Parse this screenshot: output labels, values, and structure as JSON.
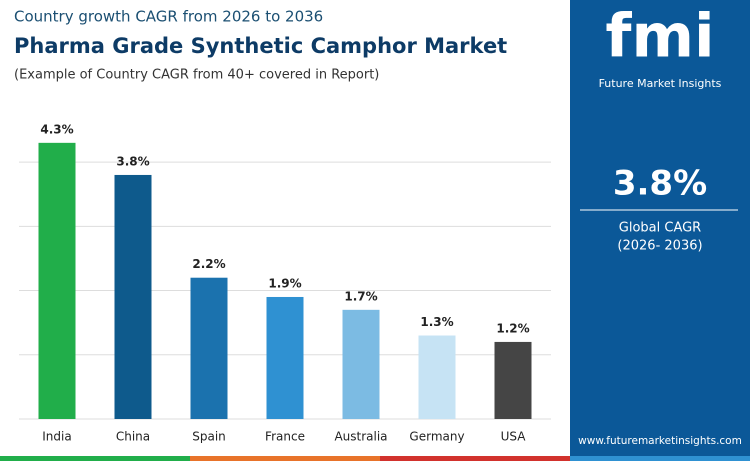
{
  "header": {
    "subtitle": "Country growth CAGR from 2026 to 2036",
    "note": "(Example of Country CAGR from 40+ covered in Report)"
  },
  "chart_data": {
    "type": "bar",
    "title": "Pharma Grade Synthetic Camphor Market",
    "categories": [
      "India",
      "China",
      "Spain",
      "France",
      "Australia",
      "Germany",
      "USA"
    ],
    "values": [
      4.3,
      3.8,
      2.2,
      1.9,
      1.7,
      1.3,
      1.2
    ],
    "value_labels": [
      "4.3%",
      "3.8%",
      "2.2%",
      "1.9%",
      "1.7%",
      "1.3%",
      "1.2%"
    ],
    "colors": [
      "#21ae4a",
      "#0e5a8c",
      "#1b72ae",
      "#2f91d2",
      "#7cbbe3",
      "#c6e3f4",
      "#454545"
    ],
    "ylim": [
      0,
      4.5
    ],
    "yticks": [
      0,
      1,
      2,
      3,
      4
    ],
    "grid": true,
    "ytick_labels": false
  },
  "panel": {
    "logo": "fmi",
    "brand": "Future Market Insights",
    "cagr_value": "3.8%",
    "cagr_label": "Global CAGR",
    "cagr_period": "(2026- 2036)",
    "url": "www.futuremarketinsights.com"
  }
}
